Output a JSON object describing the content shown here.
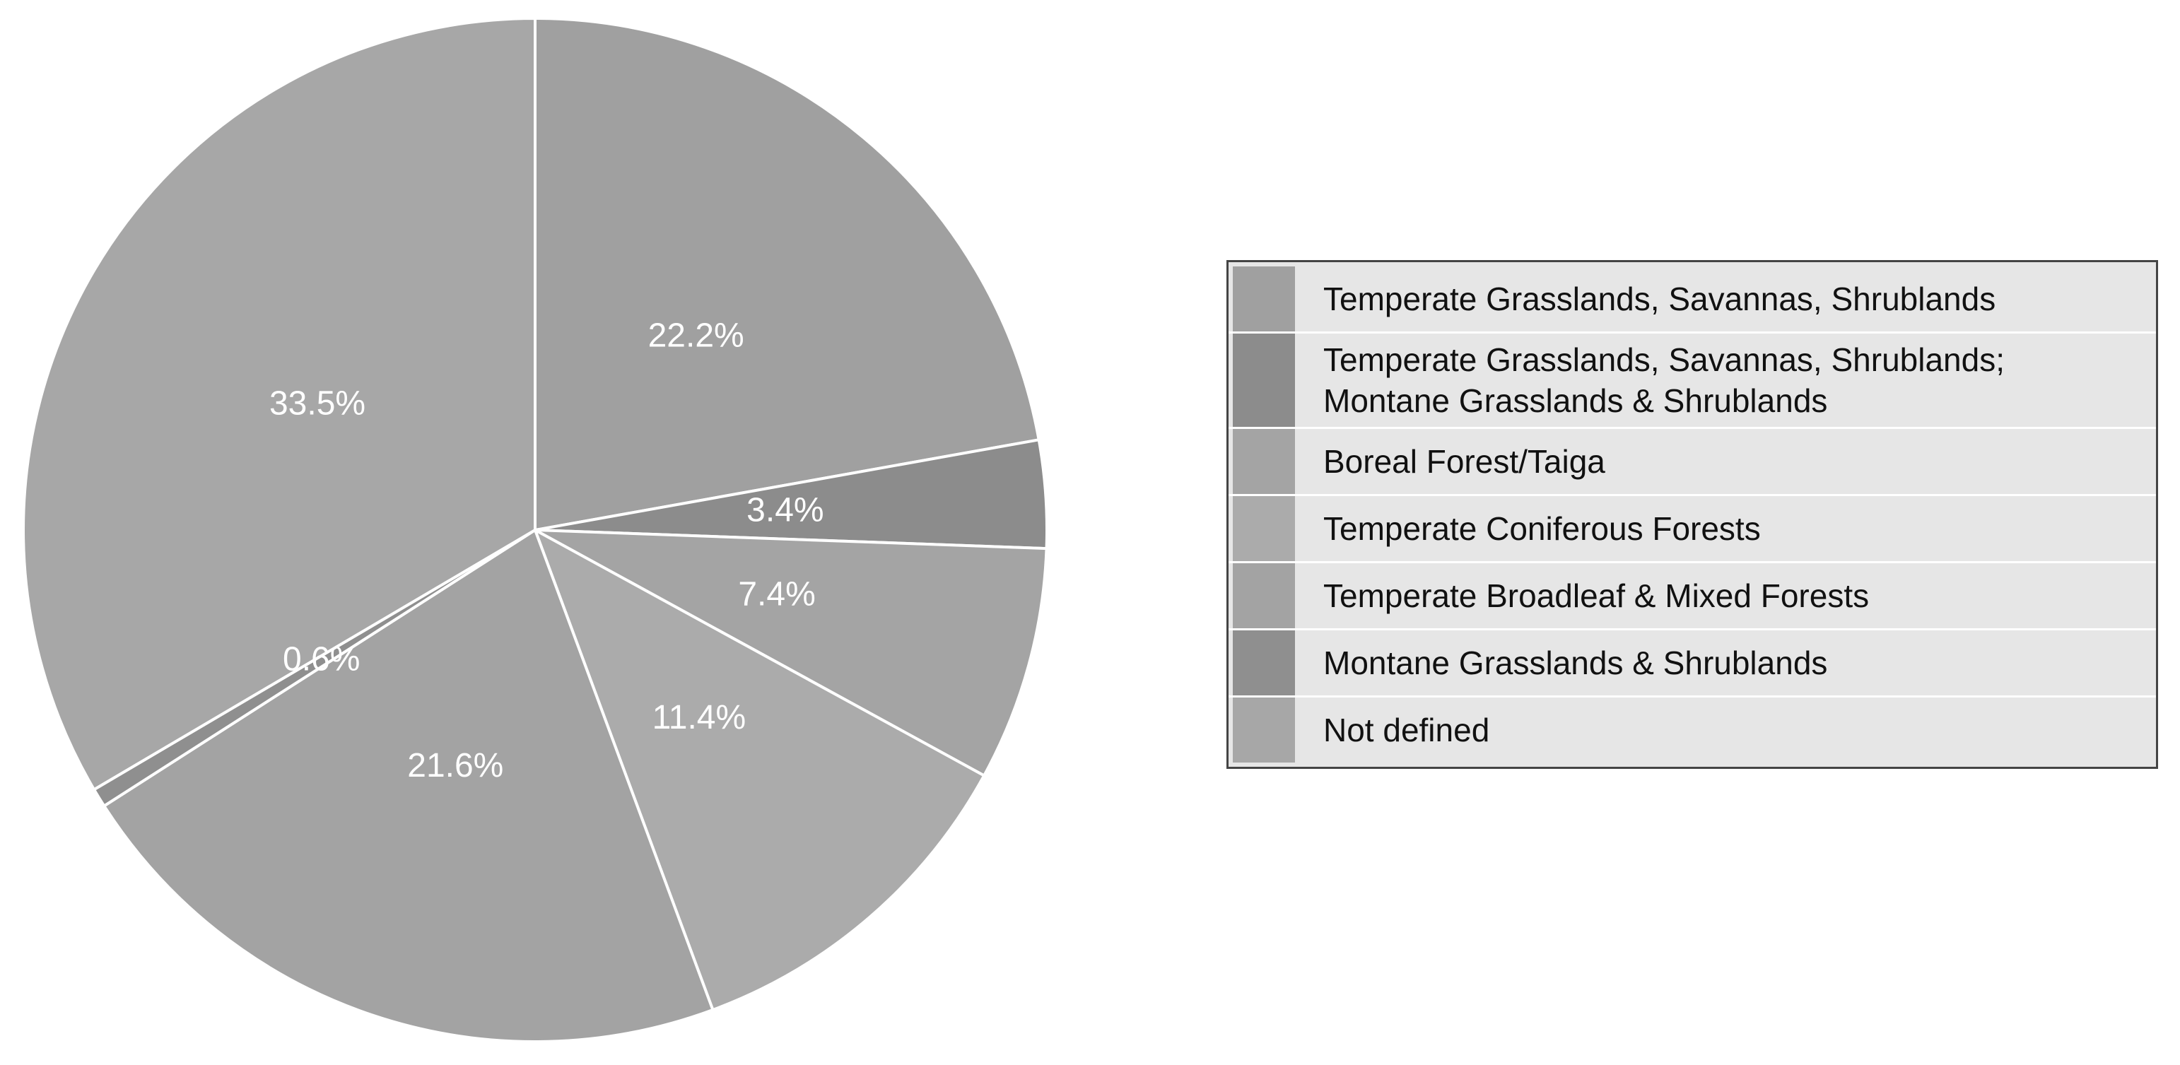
{
  "chart_data": {
    "type": "pie",
    "categories": [
      "Temperate Grasslands, Savannas, Shrublands",
      "Temperate Grasslands, Savannas, Shrublands; Montane Grasslands & Shrublands",
      "Boreal Forest/Taiga",
      "Temperate Coniferous Forests",
      "Temperate Broadleaf & Mixed Forests",
      "Montane Grasslands & Shrublands",
      "Not defined"
    ],
    "values": [
      22.2,
      3.4,
      7.4,
      11.4,
      21.6,
      0.6,
      33.5
    ],
    "value_labels": [
      "22.2%",
      "3.4%",
      "7.4%",
      "11.4%",
      "21.6%",
      "0.6%",
      "33.5%"
    ],
    "colors": [
      "#a0a0a0",
      "#8c8c8c",
      "#a4a4a4",
      "#ababab",
      "#a3a3a3",
      "#8f8f8f",
      "#a7a7a7"
    ],
    "legend": "right"
  }
}
